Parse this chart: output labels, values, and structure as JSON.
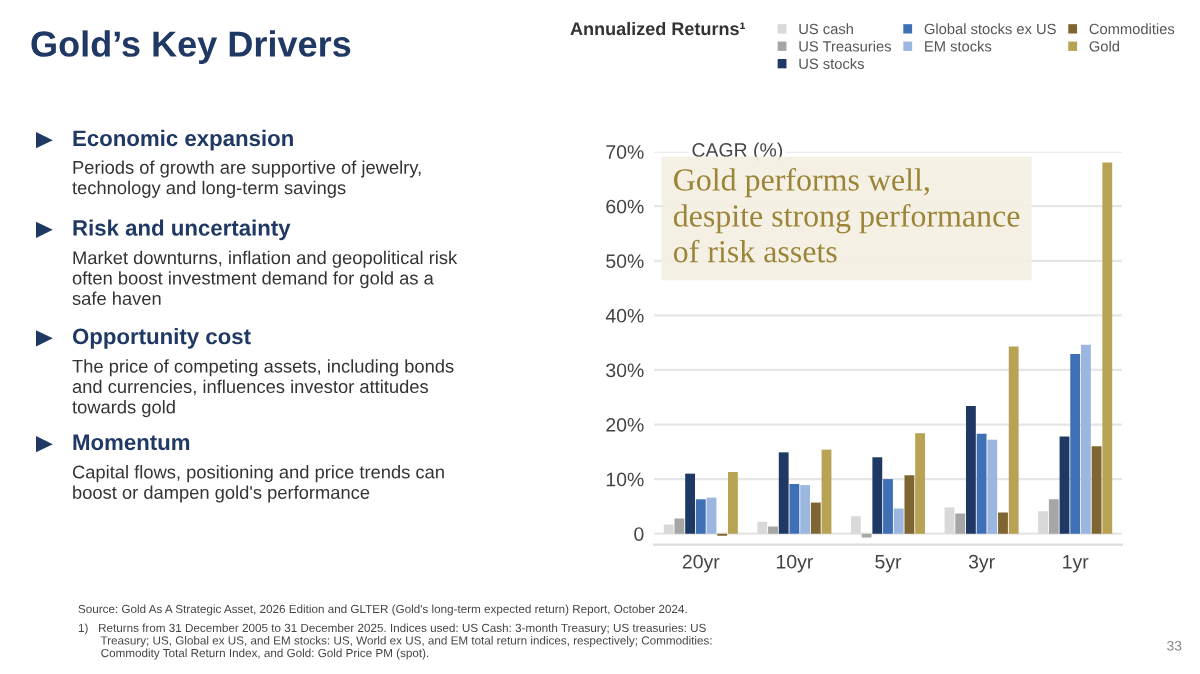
{
  "chart_data": {
    "type": "bar",
    "title": "Gold’s Key Drivers",
    "subtitle": "Annualized Returns¹",
    "ylabel": "CAGR (%)",
    "categories": [
      "20yr",
      "10yr",
      "5yr",
      "3yr",
      "1yr"
    ],
    "series": [
      {
        "name": "US cash",
        "color": "#d9d9d9",
        "values": [
          1.7,
          2.2,
          3.2,
          4.8,
          4.1
        ]
      },
      {
        "name": "US Treasuries",
        "color": "#a6a6a6",
        "values": [
          2.8,
          1.3,
          -0.7,
          3.7,
          6.3
        ]
      },
      {
        "name": "US stocks",
        "color": "#1f3864",
        "values": [
          11.0,
          14.9,
          14.0,
          23.4,
          17.8
        ]
      },
      {
        "name": "Global stocks ex US",
        "color": "#3f6fb5",
        "values": [
          6.3,
          9.1,
          10.0,
          18.3,
          32.9
        ]
      },
      {
        "name": "EM stocks",
        "color": "#9bb7e0",
        "values": [
          6.6,
          8.9,
          4.6,
          17.2,
          34.6
        ]
      },
      {
        "name": "Commodities",
        "color": "#7f6531",
        "values": [
          -0.4,
          5.7,
          10.7,
          3.9,
          16.0
        ]
      },
      {
        "name": "Gold",
        "color": "#b8a254",
        "values": [
          11.3,
          15.4,
          18.4,
          34.3,
          68
        ]
      }
    ],
    "ylim": [
      -2,
      70
    ],
    "yticks": [
      {
        "value": 0,
        "label": "0"
      },
      {
        "value": 10,
        "label": "10%"
      },
      {
        "value": 20,
        "label": "20%"
      },
      {
        "value": 30,
        "label": "30%"
      },
      {
        "value": 40,
        "label": "40%"
      },
      {
        "value": 50,
        "label": "50%"
      },
      {
        "value": 60,
        "label": "60%"
      },
      {
        "value": 70,
        "label": "70%"
      }
    ],
    "grid": "y",
    "legend": "top right",
    "annotations": [
      "Gold performs well,\ndespite strong performance\nof risk assets",
      "Economic expansion",
      "Periods of growth are supportive of jewelry,\ntechnology and long-term savings",
      "Risk and uncertainty",
      "Market downturns, inflation and geopolitical risk\noften boost investment demand for gold as a\nsafe haven",
      "Opportunity cost",
      "The price of competing assets, including bonds\nand currencies, influences investor attitudes\ntowards gold",
      "Momentum",
      "Capital flows, positioning and price trends can\nboost or dampen gold's performance",
      "Source: Gold As A Strategic Asset, 2026 Edition and GLTER (Gold's long-term expected return) Report, October 2024.",
      "1)   Returns from 31 December 2005 to 31 December 2025. Indices used: US Cash: 3-month Treasury; US treasuries: US\n       Treasury; US, Global ex US, and EM stocks: US, World ex US, and EM total return indices, respectively; Commodities:\n       Commodity Total Return Index, and Gold: Gold Price PM (spot).",
      "33"
    ]
  }
}
